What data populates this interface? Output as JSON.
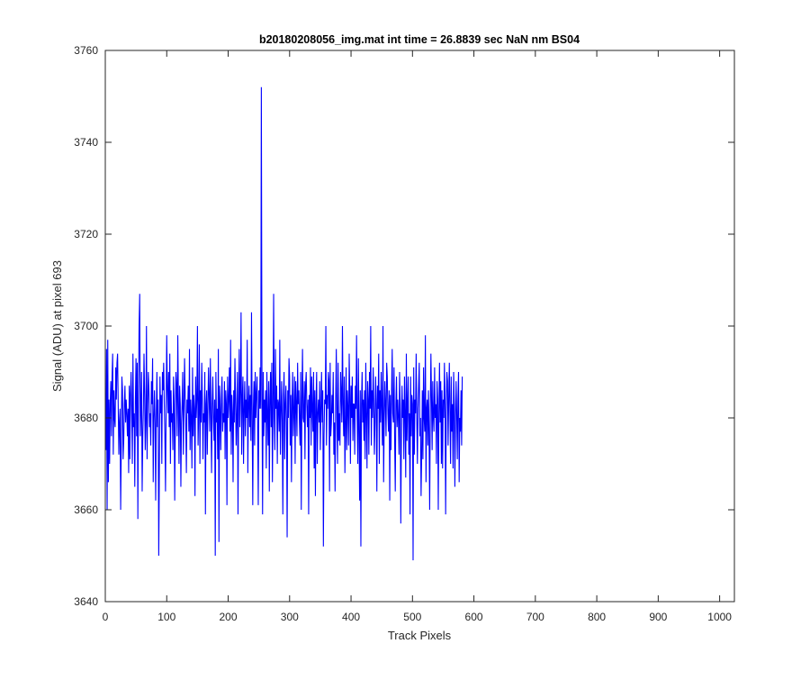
{
  "chart_data": {
    "type": "line",
    "title": "b20180208056_img.mat int time = 26.8839 sec  NaN nm BS04",
    "xlabel": "Track Pixels",
    "ylabel": "Signal (ADU) at pixel 693",
    "xlim": [
      0,
      1024
    ],
    "ylim": [
      3640,
      3760
    ],
    "x_ticks": [
      0,
      100,
      200,
      300,
      400,
      500,
      600,
      700,
      800,
      900,
      1000
    ],
    "y_ticks": [
      3640,
      3660,
      3680,
      3700,
      3720,
      3740,
      3760
    ],
    "grid": false,
    "legend": "none",
    "line_color": "#0000ff",
    "series": [
      {
        "x_start": 1,
        "x_step": 1,
        "values": [
          3673,
          3695,
          3660,
          3697,
          3666,
          3684,
          3670,
          3683,
          3688,
          3676,
          3689,
          3694,
          3672,
          3686,
          3680,
          3678,
          3691,
          3684,
          3692,
          3694,
          3683,
          3672,
          3679,
          3682,
          3660,
          3674,
          3689,
          3686,
          3671,
          3675,
          3683,
          3687,
          3679,
          3684,
          3681,
          3676,
          3682,
          3668,
          3687,
          3671,
          3685,
          3690,
          3682,
          3670,
          3694,
          3678,
          3681,
          3665,
          3684,
          3693,
          3676,
          3692,
          3658,
          3685,
          3700,
          3707,
          3676,
          3682,
          3690,
          3664,
          3676,
          3682,
          3694,
          3685,
          3673,
          3679,
          3700,
          3671,
          3683,
          3690,
          3686,
          3678,
          3681,
          3674,
          3688,
          3683,
          3693,
          3666,
          3680,
          3686,
          3679,
          3662,
          3681,
          3690,
          3678,
          3684,
          3650,
          3669,
          3689,
          3681,
          3685,
          3670,
          3690,
          3686,
          3692,
          3683,
          3676,
          3664,
          3682,
          3698,
          3686,
          3681,
          3690,
          3678,
          3694,
          3670,
          3686,
          3679,
          3681,
          3673,
          3689,
          3683,
          3662,
          3680,
          3690,
          3687,
          3676,
          3698,
          3684,
          3670,
          3687,
          3683,
          3665,
          3679,
          3683,
          3690,
          3672,
          3682,
          3693,
          3685,
          3679,
          3668,
          3684,
          3681,
          3687,
          3677,
          3695,
          3673,
          3684,
          3680,
          3669,
          3691,
          3676,
          3685,
          3682,
          3663,
          3689,
          3680,
          3684,
          3700,
          3674,
          3681,
          3696,
          3670,
          3686,
          3679,
          3692,
          3684,
          3671,
          3681,
          3679,
          3690,
          3659,
          3683,
          3686,
          3672,
          3682,
          3691,
          3685,
          3677,
          3693,
          3681,
          3668,
          3683,
          3689,
          3680,
          3675,
          3684,
          3650,
          3690,
          3679,
          3682,
          3671,
          3695,
          3653,
          3687,
          3682,
          3673,
          3684,
          3689,
          3677,
          3681,
          3679,
          3688,
          3671,
          3686,
          3683,
          3661,
          3689,
          3680,
          3684,
          3691,
          3677,
          3697,
          3672,
          3685,
          3681,
          3666,
          3686,
          3679,
          3693,
          3684,
          3674,
          3681,
          3690,
          3659,
          3683,
          3695,
          3678,
          3686,
          3703,
          3672,
          3684,
          3689,
          3670,
          3682,
          3688,
          3676,
          3684,
          3680,
          3697,
          3668,
          3683,
          3687,
          3678,
          3685,
          3675,
          3703,
          3681,
          3661,
          3682,
          3688,
          3674,
          3690,
          3680,
          3685,
          3689,
          3679,
          3661,
          3686,
          3682,
          3691,
          3682,
          3752,
          3687,
          3659,
          3690,
          3676,
          3684,
          3679,
          3686,
          3669,
          3690,
          3681,
          3674,
          3688,
          3664,
          3684,
          3690,
          3678,
          3692,
          3666,
          3682,
          3707,
          3680,
          3673,
          3695,
          3682,
          3687,
          3670,
          3684,
          3683,
          3677,
          3697,
          3672,
          3681,
          3688,
          3679,
          3659,
          3685,
          3690,
          3671,
          3683,
          3687,
          3679,
          3654,
          3686,
          3680,
          3693,
          3689,
          3674,
          3685,
          3666,
          3683,
          3690,
          3676,
          3681,
          3689,
          3670,
          3688,
          3683,
          3676,
          3692,
          3683,
          3686,
          3679,
          3674,
          3690,
          3660,
          3684,
          3695,
          3680,
          3679,
          3688,
          3671,
          3687,
          3690,
          3683,
          3678,
          3684,
          3659,
          3685,
          3680,
          3691,
          3674,
          3689,
          3682,
          3677,
          3690,
          3669,
          3686,
          3663,
          3683,
          3690,
          3670,
          3681,
          3684,
          3679,
          3688,
          3673,
          3682,
          3690,
          3679,
          3686,
          3652,
          3676,
          3684,
          3683,
          3700,
          3674,
          3685,
          3682,
          3690,
          3688,
          3664,
          3692,
          3676,
          3679,
          3685,
          3681,
          3690,
          3672,
          3679,
          3664,
          3684,
          3695,
          3680,
          3670,
          3692,
          3675,
          3681,
          3674,
          3690,
          3685,
          3679,
          3700,
          3683,
          3676,
          3689,
          3668,
          3678,
          3691,
          3673,
          3686,
          3682,
          3674,
          3694,
          3685,
          3670,
          3687,
          3680,
          3689,
          3675,
          3683,
          3683,
          3672,
          3687,
          3682,
          3698,
          3680,
          3670,
          3693,
          3677,
          3662,
          3686,
          3652,
          3683,
          3690,
          3679,
          3684,
          3675,
          3686,
          3671,
          3692,
          3681,
          3669,
          3688,
          3684,
          3672,
          3690,
          3682,
          3700,
          3674,
          3686,
          3680,
          3691,
          3684,
          3672,
          3679,
          3689,
          3683,
          3664,
          3687,
          3682,
          3694,
          3670,
          3686,
          3679,
          3690,
          3682,
          3674,
          3700,
          3666,
          3679,
          3688,
          3683,
          3676,
          3692,
          3689,
          3681,
          3677,
          3686,
          3662,
          3685,
          3673,
          3686,
          3695,
          3681,
          3679,
          3691,
          3675,
          3664,
          3683,
          3689,
          3678,
          3684,
          3680,
          3672,
          3690,
          3683,
          3657,
          3677,
          3687,
          3680,
          3684,
          3671,
          3689,
          3681,
          3667,
          3694,
          3675,
          3683,
          3689,
          3672,
          3681,
          3659,
          3689,
          3676,
          3685,
          3683,
          3649,
          3691,
          3672,
          3684,
          3681,
          3694,
          3680,
          3670,
          3682,
          3687,
          3692,
          3676,
          3680,
          3663,
          3672,
          3686,
          3671,
          3691,
          3680,
          3677,
          3698,
          3666,
          3682,
          3684,
          3674,
          3686,
          3677,
          3660,
          3681,
          3694,
          3684,
          3673,
          3688,
          3680,
          3677,
          3691,
          3680,
          3683,
          3670,
          3688,
          3684,
          3660,
          3681,
          3692,
          3679,
          3688,
          3670,
          3686,
          3669,
          3684,
          3680,
          3692,
          3683,
          3659,
          3681,
          3690,
          3688,
          3674,
          3684,
          3692,
          3681,
          3670,
          3689,
          3677,
          3683,
          3669,
          3690,
          3683,
          3665,
          3679,
          3688,
          3681,
          3671,
          3684,
          3690,
          3666,
          3680,
          3677,
          3686,
          3674,
          3689
        ]
      }
    ]
  }
}
